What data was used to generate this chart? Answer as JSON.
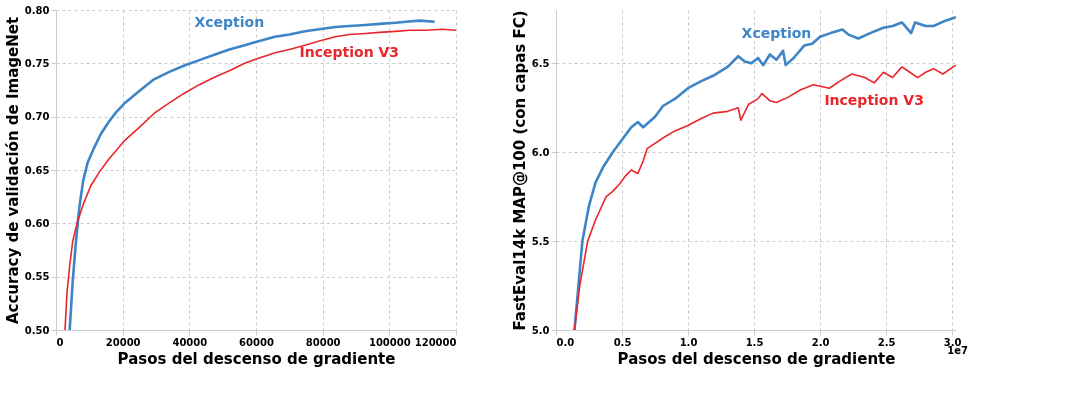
{
  "chart_data": [
    {
      "type": "line",
      "xlabel": "Pasos del descenso de gradiente",
      "ylabel": "Accuracy de validación de ImageNet",
      "xlim": [
        0,
        120000
      ],
      "ylim": [
        0.5,
        0.8
      ],
      "xticks": [
        0,
        20000,
        40000,
        60000,
        80000,
        100000,
        120000
      ],
      "yticks": [
        {
          "value": 0.5,
          "label": "0.50"
        },
        {
          "value": 0.55,
          "label": "0.55"
        },
        {
          "value": 0.6,
          "label": "0.60"
        },
        {
          "value": 0.65,
          "label": "0.65"
        },
        {
          "value": 0.7,
          "label": "0.70"
        },
        {
          "value": 0.75,
          "label": "0.75"
        },
        {
          "value": 0.8,
          "label": "0.80"
        }
      ],
      "grid": true,
      "line_style": "solid",
      "marker": "none",
      "series": [
        {
          "name": "Xception",
          "color": "#3d85c6",
          "x": [
            4100,
            5000,
            5900,
            7000,
            8150,
            9500,
            11300,
            13500,
            15800,
            18000,
            20400,
            25000,
            29400,
            34000,
            38500,
            43000,
            47500,
            52000,
            56600,
            61000,
            65700,
            70000,
            74700,
            79000,
            83800,
            88000,
            92800,
            97000,
            101900,
            105000,
            109000,
            113600
          ],
          "values": [
            0.5,
            0.545,
            0.58,
            0.615,
            0.64,
            0.657,
            0.67,
            0.684,
            0.695,
            0.704,
            0.712,
            0.724,
            0.735,
            0.742,
            0.748,
            0.753,
            0.758,
            0.763,
            0.767,
            0.771,
            0.775,
            0.777,
            0.78,
            0.782,
            0.784,
            0.785,
            0.786,
            0.787,
            0.788,
            0.789,
            0.79,
            0.789
          ]
        },
        {
          "name": "Inception V3",
          "color": "#e8262c",
          "x": [
            2700,
            3300,
            4100,
            5000,
            6300,
            8200,
            10400,
            13000,
            15800,
            18000,
            20400,
            25000,
            29400,
            34000,
            38500,
            43000,
            47500,
            52000,
            56600,
            61000,
            65700,
            70000,
            74700,
            79000,
            83800,
            88000,
            92800,
            97000,
            101900,
            106000,
            111000,
            116000,
            120000
          ],
          "values": [
            0.5,
            0.535,
            0.56,
            0.583,
            0.6,
            0.618,
            0.635,
            0.648,
            0.66,
            0.668,
            0.677,
            0.69,
            0.703,
            0.713,
            0.722,
            0.73,
            0.737,
            0.743,
            0.75,
            0.755,
            0.76,
            0.763,
            0.767,
            0.771,
            0.775,
            0.777,
            0.778,
            0.779,
            0.78,
            0.781,
            0.781,
            0.782,
            0.781
          ]
        }
      ],
      "legend": false
    },
    {
      "type": "line",
      "xlabel": "Pasos del descenso de gradiente",
      "ylabel": "FastEval14k MAP@100 (con capas FC)",
      "xlim": [
        0,
        3.03
      ],
      "ylim": [
        5.0,
        6.8
      ],
      "xticks": [
        {
          "value": 0,
          "label": "0.0"
        },
        0.5,
        {
          "value": 1,
          "label": "1.0"
        },
        1.5,
        {
          "value": 2,
          "label": "2.0"
        },
        2.5,
        {
          "value": 3,
          "label": "3.0"
        }
      ],
      "yticks": [
        {
          "value": 5,
          "label": "5.0"
        },
        5.5,
        {
          "value": 6,
          "label": "6.0"
        },
        6.5
      ],
      "grid": true,
      "line_style": "solid",
      "marker": "none",
      "series": [
        {
          "name": "Xception",
          "color": "#3d85c6",
          "x": [
            0.14,
            0.17,
            0.2,
            0.25,
            0.3,
            0.36,
            0.43,
            0.5,
            0.57,
            0.62,
            0.66,
            0.69,
            0.75,
            0.81,
            0.9,
            1.0,
            1.1,
            1.19,
            1.3,
            1.38,
            1.43,
            1.48,
            1.53,
            1.57,
            1.62,
            1.67,
            1.72,
            1.74,
            1.8,
            1.88,
            1.94,
            2.0,
            2.08,
            2.17,
            2.22,
            2.29,
            2.38,
            2.48,
            2.55,
            2.62,
            2.69,
            2.72,
            2.8,
            2.86,
            2.95,
            3.03
          ],
          "values": [
            5.0,
            5.25,
            5.5,
            5.7,
            5.83,
            5.92,
            6.0,
            6.07,
            6.14,
            6.17,
            6.14,
            6.16,
            6.2,
            6.26,
            6.3,
            6.36,
            6.4,
            6.43,
            6.48,
            6.54,
            6.51,
            6.5,
            6.53,
            6.49,
            6.55,
            6.52,
            6.57,
            6.49,
            6.53,
            6.6,
            6.61,
            6.65,
            6.67,
            6.69,
            6.66,
            6.64,
            6.67,
            6.7,
            6.71,
            6.73,
            6.67,
            6.73,
            6.71,
            6.71,
            6.74,
            6.76
          ]
        },
        {
          "name": "Inception V3",
          "color": "#e8262c",
          "x": [
            0.14,
            0.18,
            0.24,
            0.3,
            0.38,
            0.43,
            0.48,
            0.53,
            0.57,
            0.62,
            0.66,
            0.69,
            0.75,
            0.81,
            0.9,
            1.0,
            1.1,
            1.19,
            1.3,
            1.38,
            1.4,
            1.46,
            1.53,
            1.56,
            1.62,
            1.67,
            1.76,
            1.85,
            1.95,
            2.07,
            2.15,
            2.24,
            2.34,
            2.41,
            2.48,
            2.55,
            2.62,
            2.68,
            2.74,
            2.8,
            2.86,
            2.93,
            3.03
          ],
          "values": [
            5.0,
            5.25,
            5.5,
            5.62,
            5.75,
            5.78,
            5.82,
            5.87,
            5.9,
            5.88,
            5.95,
            6.02,
            6.05,
            6.08,
            6.12,
            6.15,
            6.19,
            6.22,
            6.23,
            6.25,
            6.18,
            6.27,
            6.3,
            6.33,
            6.29,
            6.28,
            6.31,
            6.35,
            6.38,
            6.36,
            6.4,
            6.44,
            6.42,
            6.39,
            6.45,
            6.42,
            6.48,
            6.45,
            6.42,
            6.45,
            6.47,
            6.44,
            6.49
          ]
        }
      ],
      "annotations": [
        "1e7"
      ],
      "legend": false
    }
  ]
}
